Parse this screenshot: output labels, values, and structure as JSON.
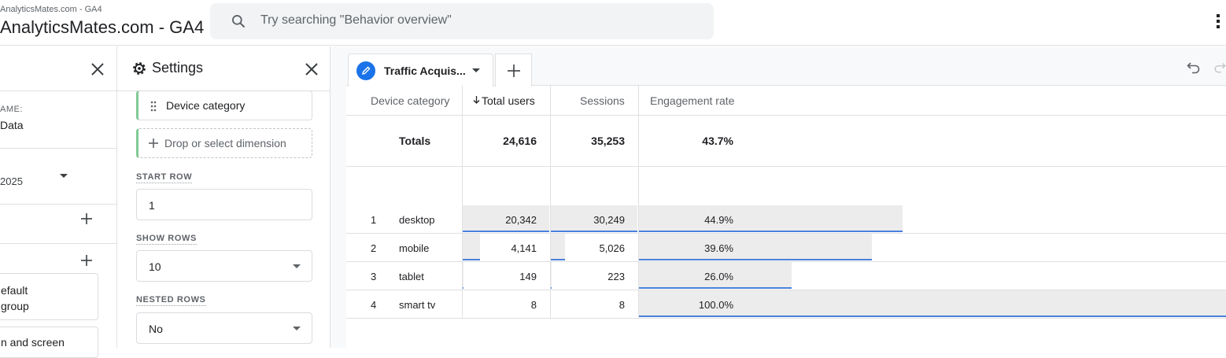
{
  "header": {
    "account_small": "AnalyticsMates.com - GA4",
    "account_name": "AnalyticsMates.com - GA4",
    "search_placeholder": "Try searching \"Behavior overview\""
  },
  "panel_left": {
    "name_label": "AME:",
    "name_value": "Data",
    "date_value": "2025",
    "group_line1": "efault",
    "group_line2": "group",
    "item_partial": "n and screen"
  },
  "settings": {
    "title": "Settings",
    "dimension_chip": "Device category",
    "drop_dimension": "Drop or select dimension",
    "start_row_label": "START ROW",
    "start_row_value": "1",
    "show_rows_label": "SHOW ROWS",
    "show_rows_value": "10",
    "nested_rows_label": "NESTED ROWS",
    "nested_rows_value": "No"
  },
  "tabs": {
    "active_tab": "Traffic Acquisition",
    "active_tab_display": "Traffic Acquis..."
  },
  "table": {
    "headers": {
      "dimension": "Device category",
      "total_users": "Total users",
      "sessions": "Sessions",
      "engagement_rate": "Engagement rate"
    },
    "totals": {
      "label": "Totals",
      "total_users": "24,616",
      "sessions": "35,253",
      "engagement_rate": "43.7%"
    },
    "rows": [
      {
        "index": "1",
        "device": "desktop",
        "total_users": "20,342",
        "sessions": "30,249",
        "engagement_rate": "44.9%",
        "users_frac": 1.0,
        "sessions_frac": 1.0,
        "eng_frac": 0.449
      },
      {
        "index": "2",
        "device": "mobile",
        "total_users": "4,141",
        "sessions": "5,026",
        "engagement_rate": "39.6%",
        "users_frac": 0.204,
        "sessions_frac": 0.166,
        "eng_frac": 0.396
      },
      {
        "index": "3",
        "device": "tablet",
        "total_users": "149",
        "sessions": "223",
        "engagement_rate": "26.0%",
        "users_frac": 0.007,
        "sessions_frac": 0.007,
        "eng_frac": 0.26
      },
      {
        "index": "4",
        "device": "smart tv",
        "total_users": "8",
        "sessions": "8",
        "engagement_rate": "100.0%",
        "users_frac": 0.0,
        "sessions_frac": 0.0,
        "eng_frac": 1.0
      }
    ]
  },
  "colors": {
    "accent": "#1a73e8",
    "bar_fill": "#ececec",
    "bar_line": "#4a80dc",
    "chip_accent": "#81c995"
  },
  "icons": [
    "search-icon",
    "close-icon",
    "gear-icon",
    "drag-handle-icon",
    "add-icon",
    "pencil-icon",
    "chevron-down-icon",
    "undo-icon",
    "redo-icon",
    "more-vert-icon",
    "sort-arrow-down-icon"
  ]
}
